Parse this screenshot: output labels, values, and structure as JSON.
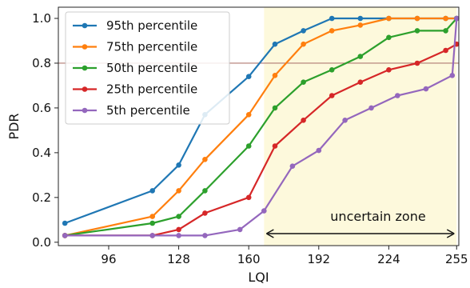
{
  "chart_data": {
    "type": "line",
    "xlabel": "LQI",
    "ylabel": "PDR",
    "xlim": [
      73,
      256
    ],
    "ylim": [
      -0.015,
      1.05
    ],
    "xticks": [
      96,
      128,
      160,
      192,
      224,
      255
    ],
    "xtick_labels": [
      "96",
      "128",
      "160",
      "192",
      "224",
      "255"
    ],
    "yticks": [
      0.0,
      0.2,
      0.4,
      0.6,
      0.8,
      1.0
    ],
    "ytick_labels": [
      "0.0",
      "0.2",
      "0.4",
      "0.6",
      "0.8",
      "1.0"
    ],
    "grid": false,
    "legend_position": "top-left",
    "hline": {
      "y": 0.8,
      "color": "#b07a72"
    },
    "uncertain_zone": {
      "x_start": 167,
      "x_end": 255,
      "label": "uncertain zone",
      "color": "#fdf9dc"
    },
    "series": [
      {
        "name": "95th percentile",
        "color": "#1f77b4",
        "x": [
          76,
          116,
          128,
          140,
          160,
          172,
          185,
          198,
          211,
          224,
          237,
          250,
          255
        ],
        "y": [
          0.085,
          0.23,
          0.345,
          0.57,
          0.74,
          0.885,
          0.945,
          1.0,
          1.0,
          1.0,
          1.0,
          1.0,
          1.0
        ]
      },
      {
        "name": "75th percentile",
        "color": "#ff7f0e",
        "x": [
          76,
          116,
          128,
          140,
          160,
          172,
          185,
          198,
          211,
          224,
          237,
          250,
          255
        ],
        "y": [
          0.03,
          0.115,
          0.23,
          0.37,
          0.57,
          0.745,
          0.885,
          0.945,
          0.97,
          1.0,
          1.0,
          1.0,
          1.0
        ]
      },
      {
        "name": "50th percentile",
        "color": "#2ca02c",
        "x": [
          76,
          116,
          128,
          140,
          160,
          172,
          185,
          198,
          211,
          224,
          237,
          250,
          255
        ],
        "y": [
          0.03,
          0.085,
          0.115,
          0.23,
          0.43,
          0.6,
          0.715,
          0.77,
          0.83,
          0.915,
          0.945,
          0.945,
          1.0
        ]
      },
      {
        "name": "25th percentile",
        "color": "#d62728",
        "x": [
          76,
          116,
          128,
          140,
          160,
          172,
          185,
          198,
          211,
          224,
          237,
          250,
          255
        ],
        "y": [
          0.03,
          0.03,
          0.057,
          0.13,
          0.2,
          0.43,
          0.545,
          0.655,
          0.715,
          0.77,
          0.8,
          0.857,
          0.885
        ]
      },
      {
        "name": "5th percentile",
        "color": "#9467bd",
        "x": [
          76,
          116,
          128,
          140,
          156,
          167,
          180,
          192,
          204,
          216,
          228,
          241,
          253,
          255
        ],
        "y": [
          0.03,
          0.03,
          0.03,
          0.03,
          0.057,
          0.14,
          0.34,
          0.41,
          0.545,
          0.6,
          0.655,
          0.685,
          0.745,
          1.0
        ]
      }
    ]
  }
}
